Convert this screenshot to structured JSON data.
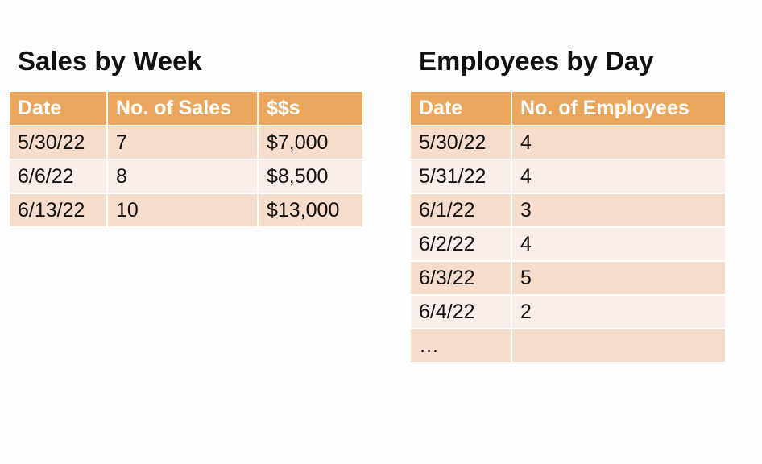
{
  "sales": {
    "title": "Sales by Week",
    "headers": [
      "Date",
      "No. of Sales",
      "$$s"
    ],
    "rows": [
      [
        "5/30/22",
        "7",
        "$7,000"
      ],
      [
        "6/6/22",
        "8",
        "$8,500"
      ],
      [
        "6/13/22",
        "10",
        "$13,000"
      ]
    ]
  },
  "employees": {
    "title": "Employees by Day",
    "headers": [
      "Date",
      "No. of Employees"
    ],
    "rows": [
      [
        "5/30/22",
        "4"
      ],
      [
        "5/31/22",
        "4"
      ],
      [
        "6/1/22",
        "3"
      ],
      [
        "6/2/22",
        "4"
      ],
      [
        "6/3/22",
        "5"
      ],
      [
        "6/4/22",
        "2"
      ],
      [
        "…",
        ""
      ]
    ]
  },
  "colors": {
    "header_bg": "#e9a65c",
    "row_odd_bg": "#f5dccc",
    "row_even_bg": "#faeeea"
  }
}
